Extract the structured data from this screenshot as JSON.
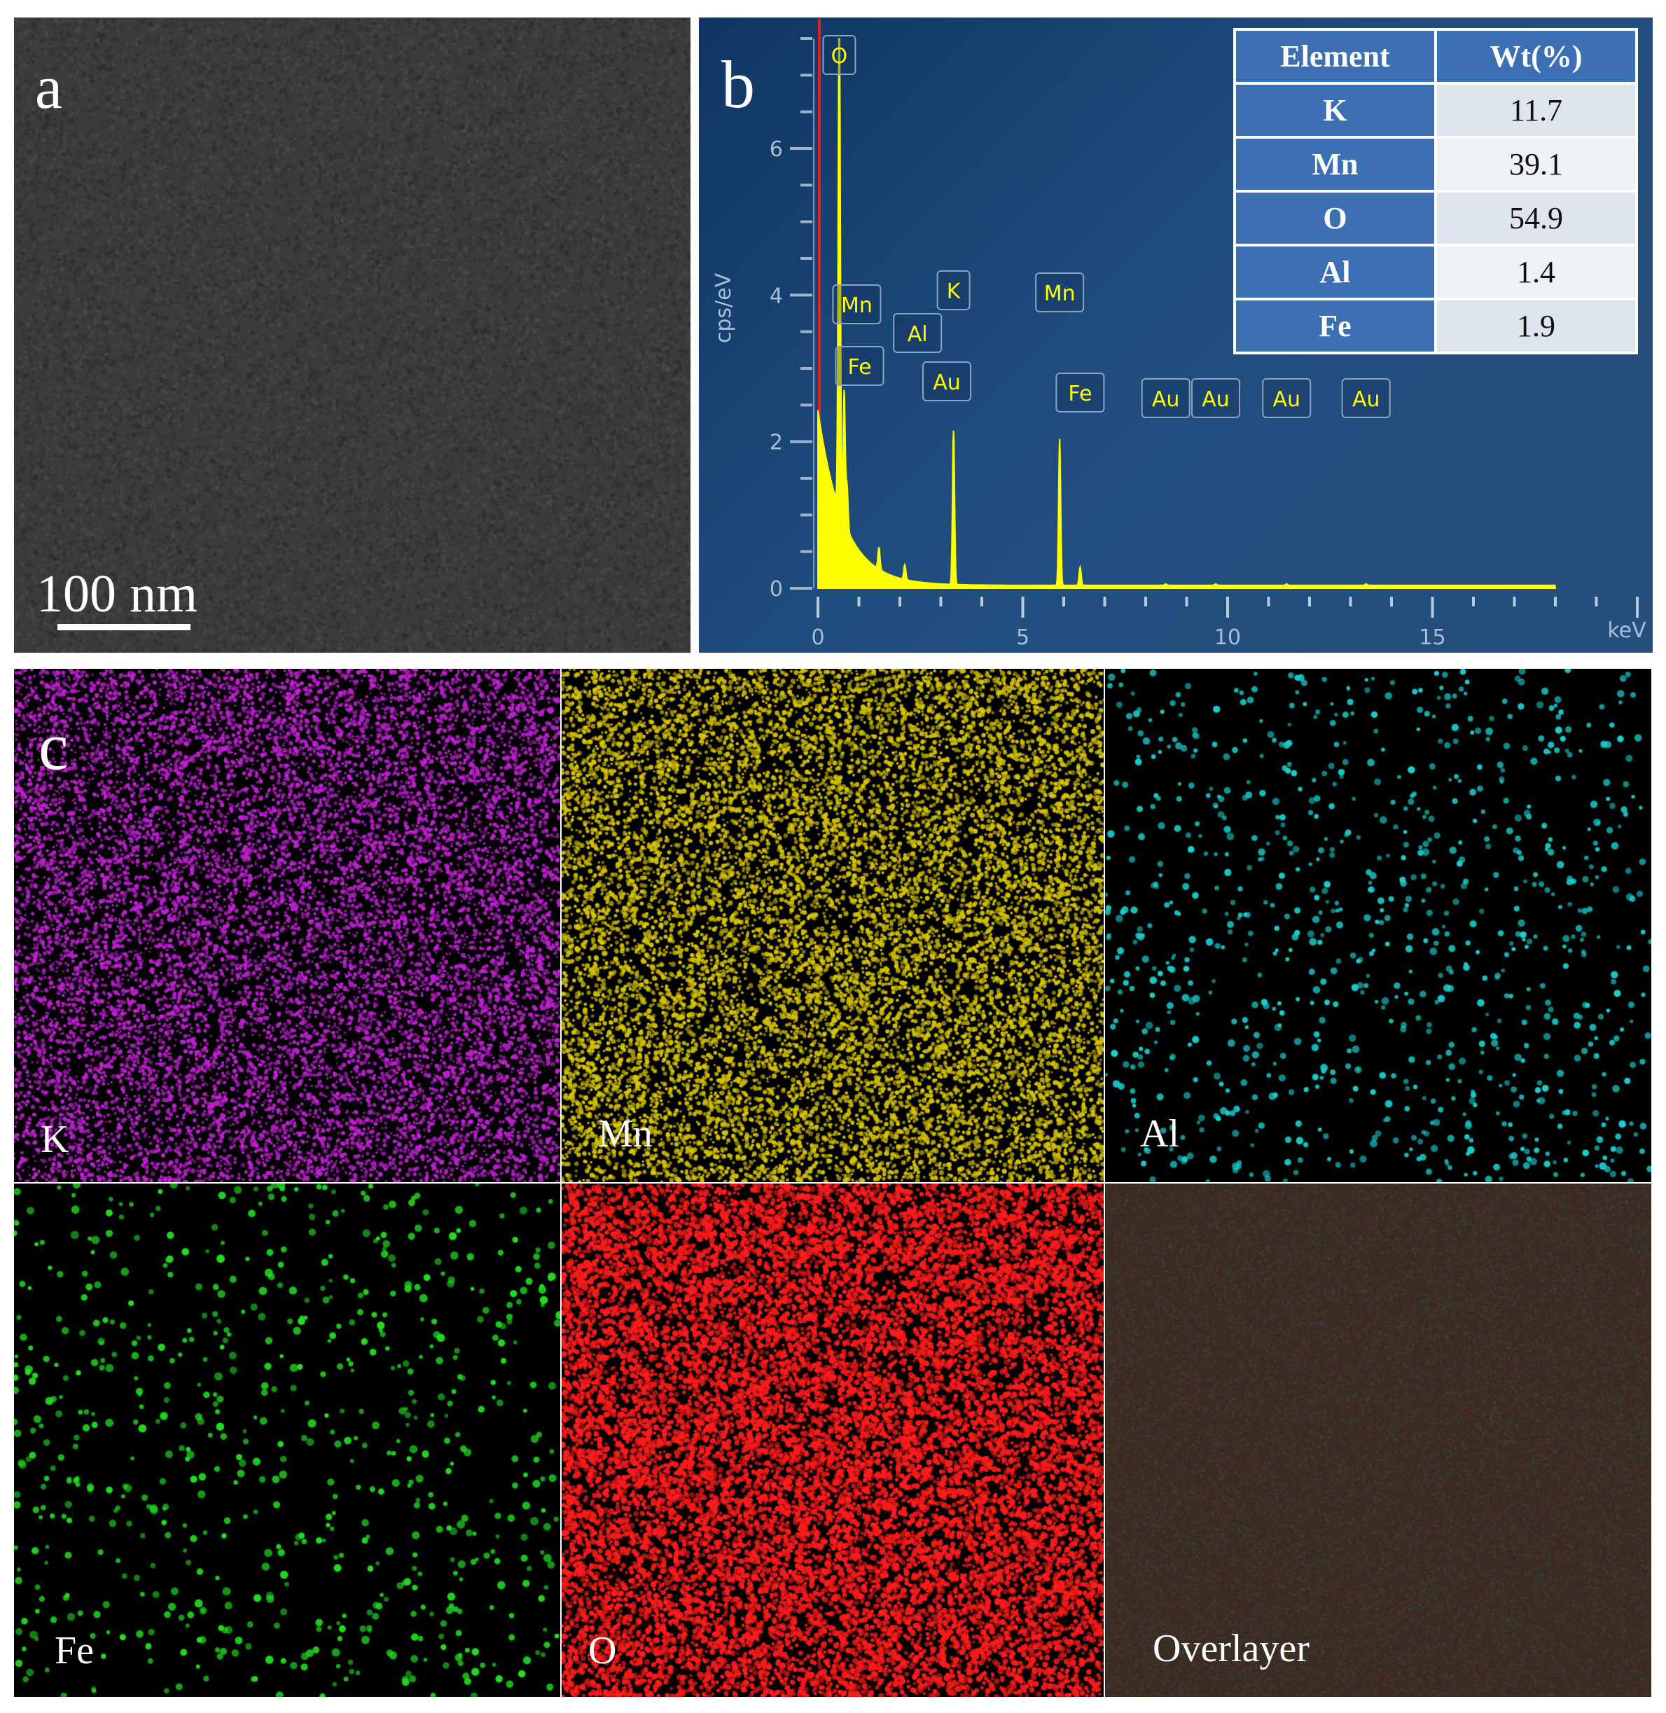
{
  "panel_a": {
    "label": "a",
    "scale_bar": "100 nm"
  },
  "panel_b": {
    "label": "b",
    "table": {
      "headers": [
        "Element",
        "Wt(%)"
      ],
      "rows": [
        {
          "element": "K",
          "wt": "11.7"
        },
        {
          "element": "Mn",
          "wt": "39.1"
        },
        {
          "element": "O",
          "wt": "54.9"
        },
        {
          "element": "Al",
          "wt": "1.4"
        },
        {
          "element": "Fe",
          "wt": "1.9"
        }
      ]
    }
  },
  "chart_data": {
    "type": "line",
    "xlabel": "keV",
    "ylabel": "cps/eV",
    "xlim": [
      0,
      20
    ],
    "ylim": [
      0,
      7.5
    ],
    "x_ticks": [
      "0",
      "5",
      "10",
      "15"
    ],
    "y_ticks": [
      "0",
      "2",
      "4",
      "6"
    ],
    "series_color": "#ffff00",
    "peaks": [
      {
        "name": "O",
        "x": 0.52,
        "y": 7.3
      },
      {
        "name": "Mn",
        "x": 0.64,
        "y": 1.8
      },
      {
        "name": "Fe",
        "x": 0.71,
        "y": 0.6
      },
      {
        "name": "Al",
        "x": 1.49,
        "y": 0.3
      },
      {
        "name": "Au",
        "x": 2.12,
        "y": 0.2
      },
      {
        "name": "K",
        "x": 3.31,
        "y": 2.1
      },
      {
        "name": "Mn",
        "x": 5.9,
        "y": 2.0
      },
      {
        "name": "Fe",
        "x": 6.4,
        "y": 0.25
      },
      {
        "name": "Au",
        "x": 8.49,
        "y": 0.02
      },
      {
        "name": "Au",
        "x": 9.71,
        "y": 0.02
      },
      {
        "name": "Au",
        "x": 11.44,
        "y": 0.02
      },
      {
        "name": "Au",
        "x": 13.38,
        "y": 0.02
      }
    ]
  },
  "panel_c": {
    "label": "c",
    "maps": [
      {
        "label": "K",
        "color": "#c022d2"
      },
      {
        "label": "Mn",
        "color": "#d6c400"
      },
      {
        "label": "Al",
        "color": "#1ad0d0"
      },
      {
        "label": "Fe",
        "color": "#22e022"
      },
      {
        "label": "O",
        "color": "#ff1c1c"
      },
      {
        "label": "Overlayer",
        "color": "#4a3a2a"
      }
    ]
  }
}
